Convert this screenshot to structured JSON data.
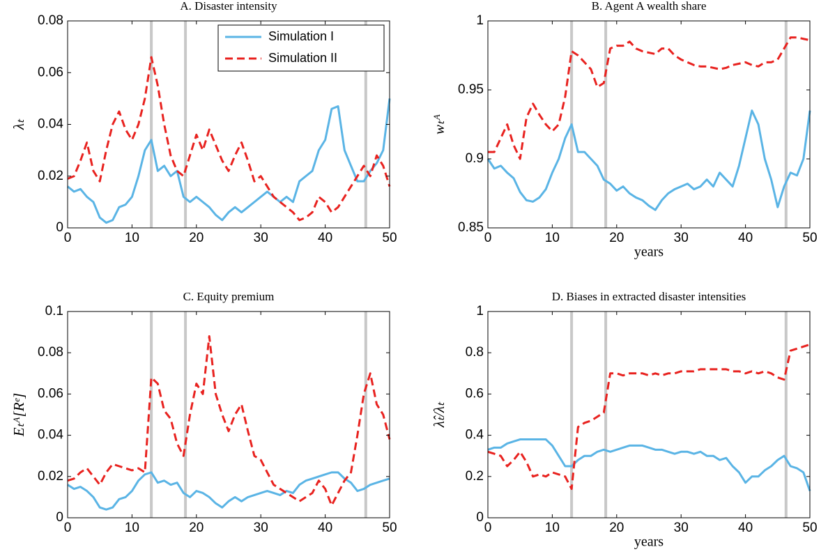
{
  "chart_data": [
    {
      "type": "line",
      "title": "A.  Disaster intensity",
      "ylabel": "λₜ",
      "x": [
        0,
        1,
        2,
        3,
        4,
        5,
        6,
        7,
        8,
        9,
        10,
        11,
        12,
        13,
        14,
        15,
        16,
        17,
        18,
        19,
        20,
        21,
        22,
        23,
        24,
        25,
        26,
        27,
        28,
        29,
        30,
        31,
        32,
        33,
        34,
        35,
        36,
        37,
        38,
        39,
        40,
        41,
        42,
        43,
        44,
        45,
        46,
        47,
        48,
        49,
        50
      ],
      "xlim": [
        0,
        50
      ],
      "ylim": [
        0,
        0.08
      ],
      "xticks": [
        0,
        10,
        20,
        30,
        40,
        50
      ],
      "yticks": [
        0,
        0.02,
        0.04,
        0.06,
        0.08
      ],
      "vlines": [
        13,
        18.3,
        46.3
      ],
      "vline_color": "#c8c8c8",
      "legend": "upper right",
      "series": [
        {
          "name": "Simulation I",
          "color": "#5ab4e5",
          "style": "solid",
          "values": [
            0.016,
            0.014,
            0.015,
            0.012,
            0.01,
            0.004,
            0.002,
            0.003,
            0.008,
            0.009,
            0.012,
            0.02,
            0.03,
            0.034,
            0.022,
            0.024,
            0.02,
            0.022,
            0.012,
            0.01,
            0.012,
            0.01,
            0.008,
            0.005,
            0.003,
            0.006,
            0.008,
            0.006,
            0.008,
            0.01,
            0.012,
            0.014,
            0.012,
            0.01,
            0.012,
            0.01,
            0.018,
            0.02,
            0.022,
            0.03,
            0.034,
            0.046,
            0.047,
            0.03,
            0.024,
            0.018,
            0.018,
            0.022,
            0.025,
            0.03,
            0.05
          ]
        },
        {
          "name": "Simulation II",
          "color": "#e8221f",
          "style": "dashed",
          "values": [
            0.019,
            0.02,
            0.026,
            0.033,
            0.022,
            0.018,
            0.03,
            0.04,
            0.045,
            0.038,
            0.034,
            0.04,
            0.05,
            0.066,
            0.055,
            0.04,
            0.028,
            0.022,
            0.02,
            0.028,
            0.036,
            0.03,
            0.038,
            0.032,
            0.026,
            0.022,
            0.028,
            0.033,
            0.026,
            0.018,
            0.02,
            0.016,
            0.012,
            0.01,
            0.008,
            0.006,
            0.003,
            0.004,
            0.006,
            0.012,
            0.01,
            0.006,
            0.008,
            0.012,
            0.016,
            0.02,
            0.024,
            0.02,
            0.028,
            0.024,
            0.016
          ]
        }
      ]
    },
    {
      "type": "line",
      "title": "B.  Agent A wealth share",
      "ylabel": "wₜᴬ",
      "xlabel": "years",
      "x": [
        0,
        1,
        2,
        3,
        4,
        5,
        6,
        7,
        8,
        9,
        10,
        11,
        12,
        13,
        14,
        15,
        16,
        17,
        18,
        19,
        20,
        21,
        22,
        23,
        24,
        25,
        26,
        27,
        28,
        29,
        30,
        31,
        32,
        33,
        34,
        35,
        36,
        37,
        38,
        39,
        40,
        41,
        42,
        43,
        44,
        45,
        46,
        47,
        48,
        49,
        50
      ],
      "xlim": [
        0,
        50
      ],
      "ylim": [
        0.85,
        1
      ],
      "xticks": [
        0,
        10,
        20,
        30,
        40,
        50
      ],
      "yticks": [
        0.85,
        0.9,
        0.95,
        1
      ],
      "vlines": [
        13,
        18.3,
        46.3
      ],
      "vline_color": "#c8c8c8",
      "series": [
        {
          "color": "#5ab4e5",
          "style": "solid",
          "values": [
            0.9,
            0.893,
            0.895,
            0.89,
            0.886,
            0.876,
            0.87,
            0.869,
            0.872,
            0.878,
            0.89,
            0.9,
            0.915,
            0.925,
            0.905,
            0.905,
            0.9,
            0.895,
            0.885,
            0.882,
            0.877,
            0.88,
            0.875,
            0.872,
            0.87,
            0.866,
            0.863,
            0.87,
            0.875,
            0.878,
            0.88,
            0.882,
            0.878,
            0.88,
            0.885,
            0.88,
            0.89,
            0.885,
            0.88,
            0.895,
            0.915,
            0.935,
            0.925,
            0.9,
            0.885,
            0.865,
            0.88,
            0.89,
            0.888,
            0.9,
            0.935
          ]
        },
        {
          "color": "#e8221f",
          "style": "dashed",
          "values": [
            0.905,
            0.905,
            0.915,
            0.925,
            0.91,
            0.9,
            0.93,
            0.94,
            0.932,
            0.925,
            0.92,
            0.925,
            0.945,
            0.978,
            0.975,
            0.97,
            0.965,
            0.952,
            0.955,
            0.98,
            0.982,
            0.982,
            0.985,
            0.98,
            0.978,
            0.977,
            0.976,
            0.98,
            0.98,
            0.975,
            0.972,
            0.97,
            0.968,
            0.967,
            0.967,
            0.966,
            0.965,
            0.966,
            0.968,
            0.969,
            0.97,
            0.968,
            0.967,
            0.97,
            0.97,
            0.972,
            0.98,
            0.988,
            0.988,
            0.987,
            0.986
          ]
        }
      ]
    },
    {
      "type": "line",
      "title": "C.  Equity premium",
      "ylabel": "Eₜᴬ[Rᵉ]",
      "x": [
        0,
        1,
        2,
        3,
        4,
        5,
        6,
        7,
        8,
        9,
        10,
        11,
        12,
        13,
        14,
        15,
        16,
        17,
        18,
        19,
        20,
        21,
        22,
        23,
        24,
        25,
        26,
        27,
        28,
        29,
        30,
        31,
        32,
        33,
        34,
        35,
        36,
        37,
        38,
        39,
        40,
        41,
        42,
        43,
        44,
        45,
        46,
        47,
        48,
        49,
        50
      ],
      "xlim": [
        0,
        50
      ],
      "ylim": [
        0,
        0.1
      ],
      "xticks": [
        0,
        10,
        20,
        30,
        40,
        50
      ],
      "yticks": [
        0,
        0.02,
        0.04,
        0.06,
        0.08,
        0.1
      ],
      "vlines": [
        13,
        18.3,
        46.3
      ],
      "vline_color": "#c8c8c8",
      "series": [
        {
          "color": "#5ab4e5",
          "style": "solid",
          "values": [
            0.016,
            0.014,
            0.015,
            0.013,
            0.01,
            0.005,
            0.004,
            0.005,
            0.009,
            0.01,
            0.013,
            0.018,
            0.021,
            0.022,
            0.017,
            0.018,
            0.016,
            0.017,
            0.012,
            0.01,
            0.013,
            0.012,
            0.01,
            0.007,
            0.005,
            0.008,
            0.01,
            0.008,
            0.01,
            0.011,
            0.012,
            0.013,
            0.012,
            0.011,
            0.013,
            0.012,
            0.016,
            0.018,
            0.019,
            0.02,
            0.021,
            0.022,
            0.022,
            0.019,
            0.017,
            0.013,
            0.014,
            0.016,
            0.017,
            0.018,
            0.019
          ]
        },
        {
          "color": "#e8221f",
          "style": "dashed",
          "values": [
            0.018,
            0.019,
            0.022,
            0.024,
            0.02,
            0.016,
            0.022,
            0.026,
            0.025,
            0.024,
            0.023,
            0.024,
            0.022,
            0.068,
            0.065,
            0.052,
            0.048,
            0.036,
            0.03,
            0.05,
            0.065,
            0.06,
            0.088,
            0.06,
            0.05,
            0.042,
            0.05,
            0.055,
            0.042,
            0.03,
            0.028,
            0.022,
            0.016,
            0.014,
            0.012,
            0.01,
            0.008,
            0.01,
            0.012,
            0.018,
            0.014,
            0.006,
            0.012,
            0.018,
            0.022,
            0.04,
            0.06,
            0.07,
            0.055,
            0.05,
            0.038
          ]
        }
      ]
    },
    {
      "type": "line",
      "title": "D.  Biases in extracted disaster intensities",
      "ylabel": "λ̂ₜ/λₜ",
      "xlabel": "years",
      "x": [
        0,
        1,
        2,
        3,
        4,
        5,
        6,
        7,
        8,
        9,
        10,
        11,
        12,
        13,
        14,
        15,
        16,
        17,
        18,
        19,
        20,
        21,
        22,
        23,
        24,
        25,
        26,
        27,
        28,
        29,
        30,
        31,
        32,
        33,
        34,
        35,
        36,
        37,
        38,
        39,
        40,
        41,
        42,
        43,
        44,
        45,
        46,
        47,
        48,
        49,
        50
      ],
      "xlim": [
        0,
        50
      ],
      "ylim": [
        0,
        1
      ],
      "xticks": [
        0,
        10,
        20,
        30,
        40,
        50
      ],
      "yticks": [
        0,
        0.2,
        0.4,
        0.6,
        0.8,
        1
      ],
      "vlines": [
        13,
        18.3,
        46.3
      ],
      "vline_color": "#c8c8c8",
      "series": [
        {
          "color": "#5ab4e5",
          "style": "solid",
          "values": [
            0.33,
            0.34,
            0.34,
            0.36,
            0.37,
            0.38,
            0.38,
            0.38,
            0.38,
            0.38,
            0.35,
            0.3,
            0.25,
            0.25,
            0.28,
            0.3,
            0.3,
            0.32,
            0.33,
            0.32,
            0.33,
            0.34,
            0.35,
            0.35,
            0.35,
            0.34,
            0.33,
            0.33,
            0.32,
            0.31,
            0.32,
            0.32,
            0.31,
            0.32,
            0.3,
            0.3,
            0.28,
            0.29,
            0.25,
            0.22,
            0.17,
            0.2,
            0.2,
            0.23,
            0.25,
            0.28,
            0.3,
            0.25,
            0.24,
            0.22,
            0.13
          ]
        },
        {
          "color": "#e8221f",
          "style": "dashed",
          "values": [
            0.32,
            0.31,
            0.3,
            0.25,
            0.28,
            0.32,
            0.27,
            0.2,
            0.21,
            0.2,
            0.22,
            0.21,
            0.2,
            0.14,
            0.44,
            0.46,
            0.47,
            0.49,
            0.51,
            0.7,
            0.7,
            0.69,
            0.7,
            0.7,
            0.7,
            0.69,
            0.7,
            0.69,
            0.7,
            0.7,
            0.71,
            0.71,
            0.71,
            0.72,
            0.72,
            0.72,
            0.72,
            0.72,
            0.71,
            0.71,
            0.7,
            0.71,
            0.7,
            0.71,
            0.7,
            0.68,
            0.67,
            0.81,
            0.82,
            0.83,
            0.84
          ]
        }
      ]
    }
  ]
}
